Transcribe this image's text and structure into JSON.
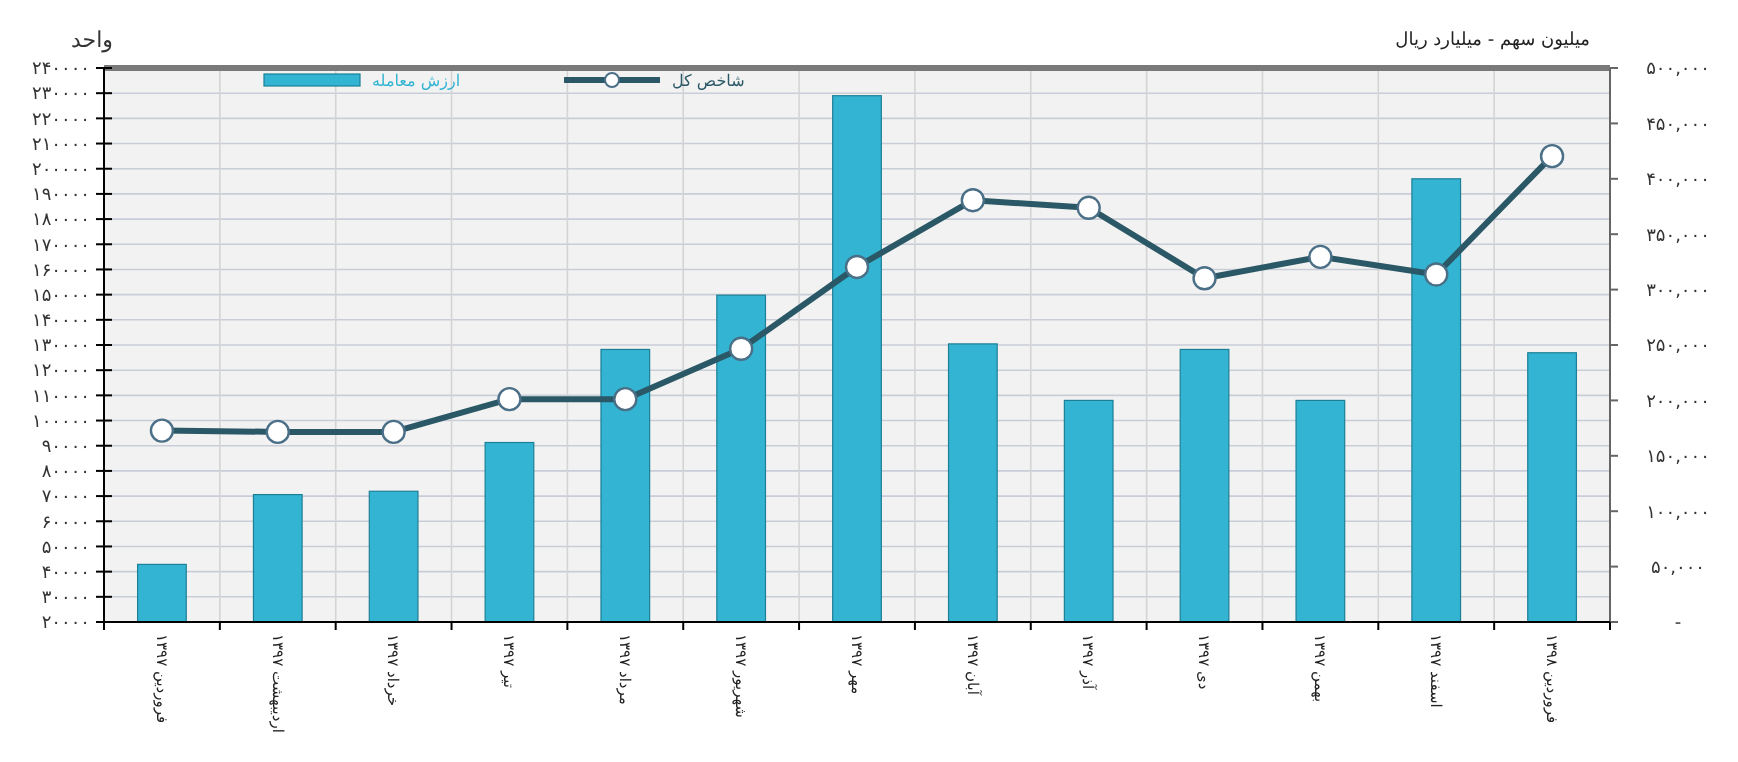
{
  "chart_data": {
    "type": "bar",
    "ylabel": "واحد",
    "y2label": "میلیون سهم - میلیارد ریال",
    "categories": [
      "۱۳۹۷ فروردین",
      "۱۳۹۷ اردیبهشت",
      "۱۳۹۷ خرداد",
      "۱۳۹۷ تیر",
      "۱۳۹۷ مرداد",
      "۱۳۹۷ شهریور",
      "۱۳۹۷ مهر",
      "۱۳۹۷ آبان",
      "۱۳۹۷ آذر",
      "۱۳۹۷ دی",
      "۱۳۹۷ بهمن",
      "۱۳۹۷ اسفند",
      "۱۳۹۸ فروردین"
    ],
    "series": [
      {
        "name": "ارزش معامله",
        "axis": "y2",
        "color": "#33b4d2",
        "values": [
          52000,
          115000,
          118000,
          162000,
          246000,
          295000,
          475000,
          251000,
          200000,
          246000,
          200000,
          400000,
          243000
        ]
      },
      {
        "name": "شاخص کل",
        "type": "line",
        "axis": "y",
        "color": "#2b5866",
        "marker": "circle",
        "values": [
          96000,
          95500,
          95500,
          108500,
          108500,
          128500,
          161000,
          187500,
          184500,
          156500,
          165000,
          158000,
          205000
        ]
      }
    ],
    "ylim": [
      20000,
      240000
    ],
    "yticks": [
      {
        "value": 20000,
        "label": "۲۰۰۰۰"
      },
      {
        "value": 30000,
        "label": "۳۰۰۰۰"
      },
      {
        "value": 40000,
        "label": "۴۰۰۰۰"
      },
      {
        "value": 50000,
        "label": "۵۰۰۰۰"
      },
      {
        "value": 60000,
        "label": "۶۰۰۰۰"
      },
      {
        "value": 70000,
        "label": "۷۰۰۰۰"
      },
      {
        "value": 80000,
        "label": "۸۰۰۰۰"
      },
      {
        "value": 90000,
        "label": "۹۰۰۰۰"
      },
      {
        "value": 100000,
        "label": "۱۰۰۰۰۰"
      },
      {
        "value": 110000,
        "label": "۱۱۰۰۰۰"
      },
      {
        "value": 120000,
        "label": "۱۲۰۰۰۰"
      },
      {
        "value": 130000,
        "label": "۱۳۰۰۰۰"
      },
      {
        "value": 140000,
        "label": "۱۴۰۰۰۰"
      },
      {
        "value": 150000,
        "label": "۱۵۰۰۰۰"
      },
      {
        "value": 160000,
        "label": "۱۶۰۰۰۰"
      },
      {
        "value": 170000,
        "label": "۱۷۰۰۰۰"
      },
      {
        "value": 180000,
        "label": "۱۸۰۰۰۰"
      },
      {
        "value": 190000,
        "label": "۱۹۰۰۰۰"
      },
      {
        "value": 200000,
        "label": "۲۰۰۰۰۰"
      },
      {
        "value": 210000,
        "label": "۲۱۰۰۰۰"
      },
      {
        "value": 220000,
        "label": "۲۲۰۰۰۰"
      },
      {
        "value": 230000,
        "label": "۲۳۰۰۰۰"
      },
      {
        "value": 240000,
        "label": "۲۴۰۰۰۰"
      }
    ],
    "y2lim": [
      0,
      500000
    ],
    "y2ticks": [
      {
        "value": 0,
        "label": "-"
      },
      {
        "value": 50000,
        "label": "۵۰,۰۰۰"
      },
      {
        "value": 100000,
        "label": "۱۰۰,۰۰۰"
      },
      {
        "value": 150000,
        "label": "۱۵۰,۰۰۰"
      },
      {
        "value": 200000,
        "label": "۲۰۰,۰۰۰"
      },
      {
        "value": 250000,
        "label": "۲۵۰,۰۰۰"
      },
      {
        "value": 300000,
        "label": "۳۰۰,۰۰۰"
      },
      {
        "value": 350000,
        "label": "۳۵۰,۰۰۰"
      },
      {
        "value": 400000,
        "label": "۴۰۰,۰۰۰"
      },
      {
        "value": 450000,
        "label": "۴۵۰,۰۰۰"
      },
      {
        "value": 500000,
        "label": "۵۰۰,۰۰۰"
      }
    ],
    "grid": true,
    "legend": "top left"
  }
}
